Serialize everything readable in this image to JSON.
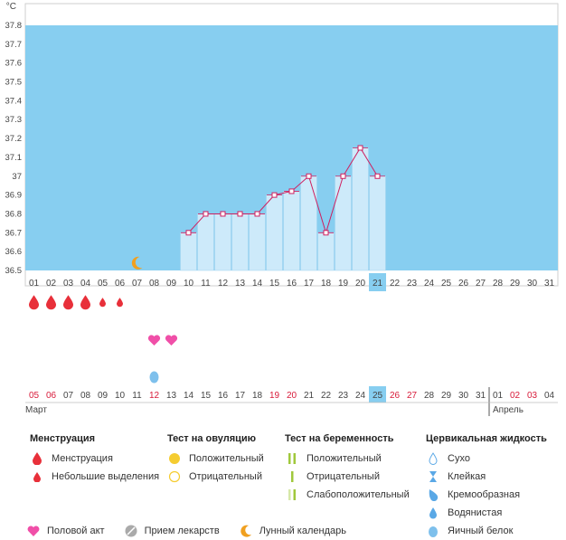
{
  "chart_data": {
    "type": "bar",
    "ylabel": "°C",
    "ylim": [
      36.5,
      37.8
    ],
    "y_ticks": [
      "36.5",
      "36.6",
      "36.7",
      "36.8",
      "36.9",
      "37",
      "37.1",
      "37.2",
      "37.3",
      "37.4",
      "37.5",
      "37.6",
      "37.7",
      "37.8"
    ],
    "cycle_days": [
      "01",
      "02",
      "03",
      "04",
      "05",
      "06",
      "07",
      "08",
      "09",
      "10",
      "11",
      "12",
      "13",
      "14",
      "15",
      "16",
      "17",
      "18",
      "19",
      "20",
      "21",
      "22",
      "23",
      "24",
      "25",
      "26",
      "27",
      "28",
      "29",
      "30",
      "31"
    ],
    "x": [
      10,
      11,
      12,
      13,
      14,
      15,
      16,
      17,
      18,
      19,
      20,
      21
    ],
    "values": [
      36.7,
      36.8,
      36.8,
      36.8,
      36.8,
      36.9,
      36.92,
      37.0,
      36.7,
      37.0,
      37.15,
      37.0
    ],
    "highlight_day": "21",
    "colors": {
      "band": "#87cef0",
      "bar": "#cdeafa",
      "line": "#cf1f5f",
      "highlight": "#87cef0"
    }
  },
  "markers": {
    "menstruation_days": [
      1,
      2,
      3,
      4
    ],
    "light_bleeding_days": [
      5,
      6
    ],
    "intercourse_days": [
      8,
      9
    ],
    "lunar_day": 7,
    "fluid_day": 8
  },
  "dates": {
    "labels": [
      "05",
      "06",
      "07",
      "08",
      "09",
      "10",
      "11",
      "12",
      "13",
      "14",
      "15",
      "16",
      "17",
      "18",
      "19",
      "20",
      "21",
      "22",
      "23",
      "24",
      "25",
      "26",
      "27",
      "28",
      "29",
      "30",
      "31",
      "01",
      "02",
      "03",
      "04"
    ],
    "red": [
      "05",
      "06",
      "12",
      "19",
      "20",
      "26",
      "27",
      "02",
      "03"
    ],
    "highlight": "25",
    "month_start": "Март",
    "month_next": "Апрель"
  },
  "legend": {
    "menstruation": {
      "title": "Менструация",
      "items": [
        "Менструация",
        "Небольшие выделения"
      ]
    },
    "ovulation": {
      "title": "Тест на овуляцию",
      "items": [
        "Положительный",
        "Отрицательный"
      ]
    },
    "pregnancy": {
      "title": "Тест на беременность",
      "items": [
        "Положительный",
        "Отрицательный",
        "Слабоположительный"
      ]
    },
    "cervical": {
      "title": "Цервикальная жидкость",
      "items": [
        "Сухо",
        "Клейкая",
        "Кремообразная",
        "Водянистая",
        "Яичный белок"
      ]
    },
    "bottom": [
      "Половой акт",
      "Прием лекарств",
      "Лунный календарь"
    ]
  },
  "colors": {
    "red": "#e8303a",
    "pink": "#f04fa8",
    "orange": "#f0a020",
    "yellow": "#f5cc30",
    "green": "#a0c83c",
    "blue": "#5aa8e6",
    "gray": "#aaaaaa"
  }
}
